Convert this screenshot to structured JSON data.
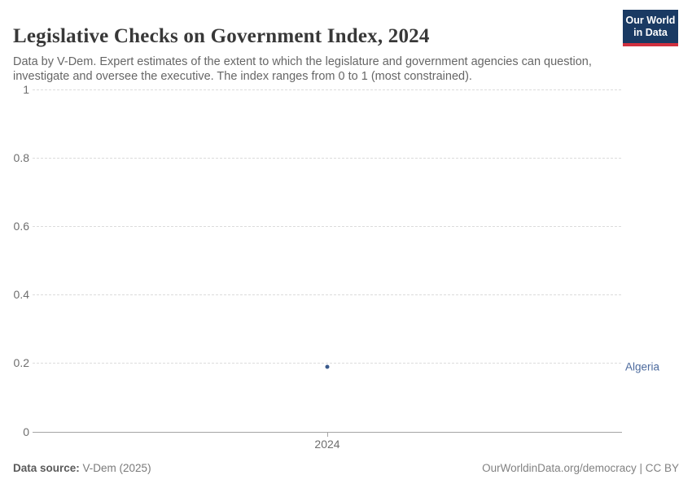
{
  "header": {
    "title": "Legislative Checks on Government Index, 2024",
    "subtitle": "Data by V-Dem. Expert estimates of the extent to which the legislature and government agencies can question, investigate and oversee the executive. The index ranges from 0 to 1 (most constrained).",
    "logo": {
      "line1": "Our World",
      "line2": "in Data",
      "bg_color": "#1a3a63",
      "accent_color": "#d1313f"
    }
  },
  "chart_data": {
    "type": "scatter",
    "title": "Legislative Checks on Government Index, 2024",
    "x": [
      2024
    ],
    "series": [
      {
        "name": "Algeria",
        "values": [
          0.19
        ],
        "color": "#3a5a8c"
      }
    ],
    "xlabel": "",
    "ylabel": "",
    "ylim": [
      0,
      1
    ],
    "yticks": [
      "1",
      "0.8",
      "0.6",
      "0.4",
      "0.2",
      "0"
    ],
    "xticks": [
      "2024"
    ],
    "grid": "horizontal-dashed",
    "legend_position": "right-of-point",
    "label_color": "#4d6b9e"
  },
  "footer": {
    "source_label": "Data source:",
    "source_value": " V-Dem (2025)",
    "credit": "OurWorldinData.org/democracy | CC BY"
  }
}
